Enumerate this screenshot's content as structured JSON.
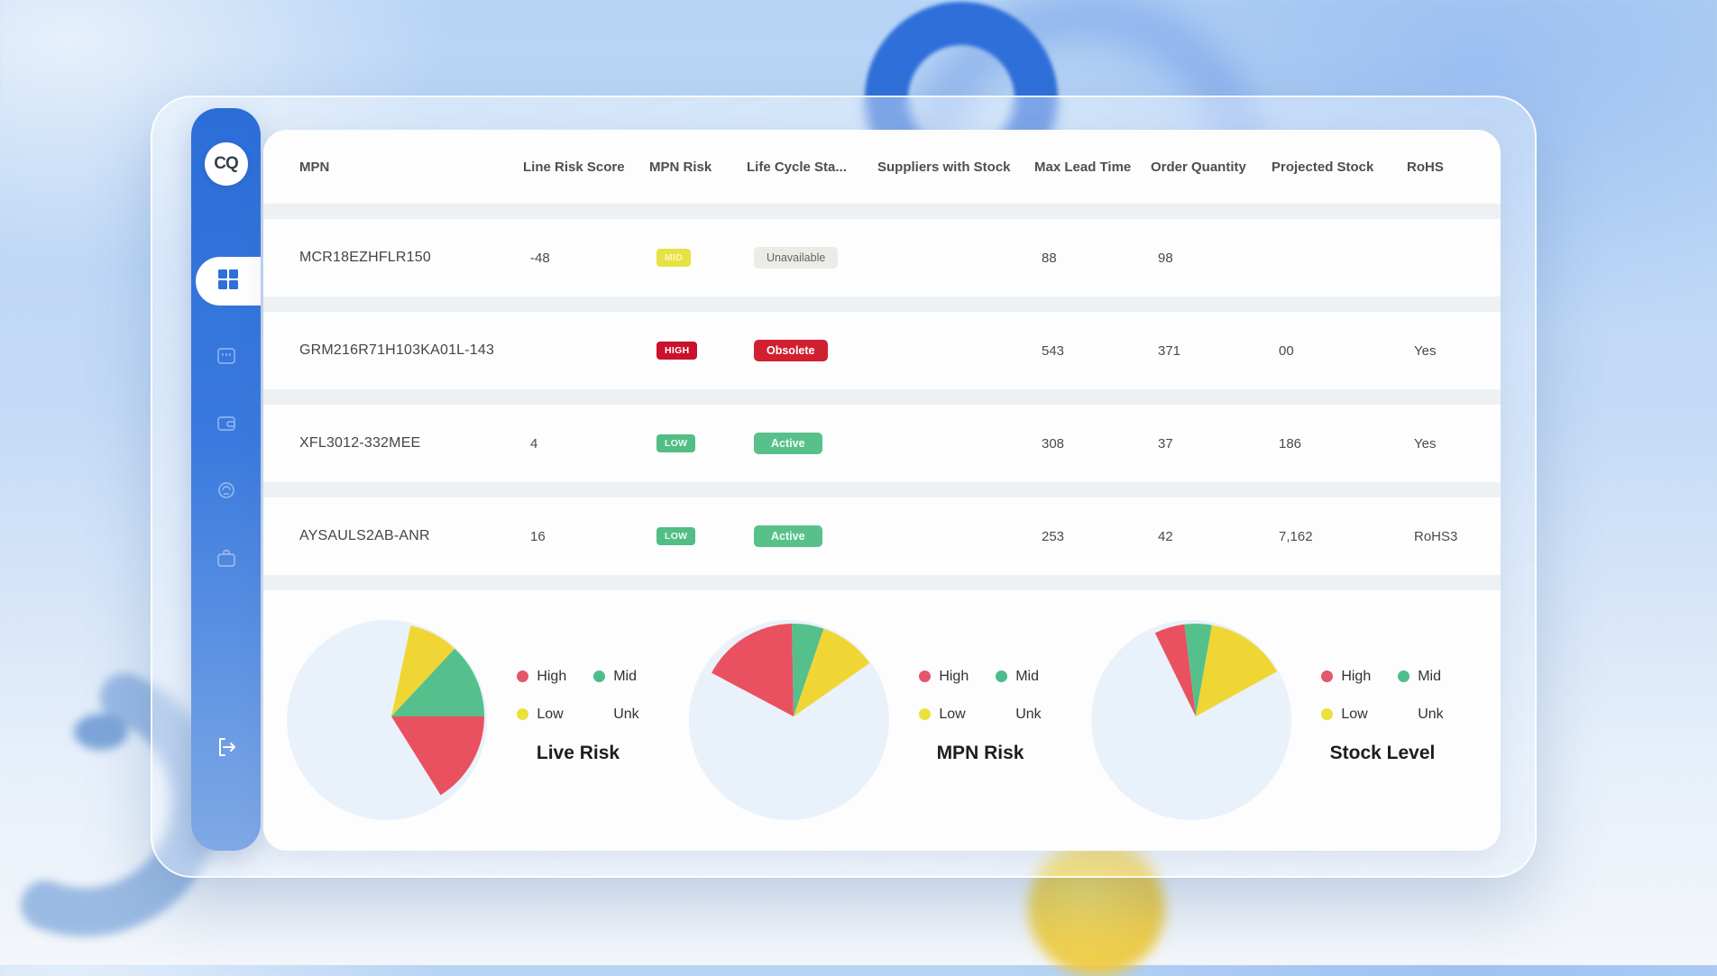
{
  "theme": {
    "sidebar_blue_top": "#2b6ed8",
    "sidebar_blue_bottom": "#7fa9e6",
    "accent_blue": "#2e6fd8",
    "panel_bg": "#fdfdfe",
    "stripe_bg": "#eef1f4",
    "badge_high_red": "#c9122b",
    "badge_danger_red": "#d02030",
    "badge_green": "#56c087",
    "badge_yellow": "#e7e243",
    "badge_neutral_gray": "#ebebe8",
    "legend": {
      "high": "#e4566b",
      "mid": "#4fbc8c",
      "low": "#e9e23d",
      "unk": "transparent"
    }
  },
  "sidebar": {
    "logo_text": "CQ"
  },
  "table": {
    "headers": [
      "MPN",
      "Line Risk Score",
      "MPN Risk",
      "Life Cycle Sta...",
      "Suppliers with Stock",
      "Max Lead Time",
      "Order Quantity",
      "Projected Stock",
      "RoHS"
    ],
    "rows": [
      {
        "mpn": "MCR18EZHFLR150",
        "line_risk_score": "-48",
        "mpn_risk": {
          "label": "MID",
          "type": "mid"
        },
        "life_cycle": {
          "label": "Unavailable",
          "type": "neutral"
        },
        "suppliers_with_stock": "",
        "max_lead_time": "88",
        "order_quantity": "98",
        "projected_stock": "",
        "rohs": ""
      },
      {
        "mpn": "GRM216R71H103KA01L-143",
        "line_risk_score": "",
        "mpn_risk": {
          "label": "HIGH",
          "type": "high"
        },
        "life_cycle": {
          "label": "Obsolete",
          "type": "danger"
        },
        "suppliers_with_stock": "",
        "max_lead_time": "543",
        "order_quantity": "371",
        "projected_stock": "00",
        "rohs": "Yes"
      },
      {
        "mpn": "XFL3012-332MEE",
        "line_risk_score": "4",
        "mpn_risk": {
          "label": "LOW",
          "type": "low"
        },
        "life_cycle": {
          "label": "Active",
          "type": "success"
        },
        "suppliers_with_stock": "",
        "max_lead_time": "308",
        "order_quantity": "37",
        "projected_stock": "186",
        "rohs": "Yes"
      },
      {
        "mpn": "AYSAULS2AB-ANR",
        "line_risk_score": "16",
        "mpn_risk": {
          "label": "LOW",
          "type": "low"
        },
        "life_cycle": {
          "label": "Active",
          "type": "success"
        },
        "suppliers_with_stock": "",
        "max_lead_time": "253",
        "order_quantity": "42",
        "projected_stock": "7,162",
        "rohs": "RoHS3"
      }
    ]
  },
  "legend": {
    "high": "High",
    "mid": "Mid",
    "low": "Low",
    "unk": "Unk"
  },
  "chart_data": [
    {
      "type": "pie",
      "title": "Live Risk",
      "legend_labels": [
        "High",
        "Mid",
        "Low",
        "Unk"
      ],
      "values_pct": {
        "High": 16,
        "Mid": 13,
        "Low": 9,
        "Unk": 62
      },
      "unk_fill": "#e9f2fa",
      "slices": [
        {
          "label": "Low",
          "start_deg": 78,
          "end_deg": 47,
          "color": "#f0d634"
        },
        {
          "label": "Mid",
          "start_deg": 47,
          "end_deg": 0,
          "color": "#55c08c"
        },
        {
          "label": "High",
          "start_deg": 0,
          "end_deg": -58,
          "color": "#ea5160"
        }
      ]
    },
    {
      "type": "pie",
      "title": "MPN Risk",
      "legend_labels": [
        "High",
        "Mid",
        "Low",
        "Unk"
      ],
      "values_pct": {
        "High": 17,
        "Mid": 6,
        "Low": 10,
        "Unk": 67
      },
      "unk_fill": "#e9f2fa",
      "slices": [
        {
          "label": "High",
          "start_deg": 152,
          "end_deg": 91,
          "color": "#ea5160"
        },
        {
          "label": "Mid",
          "start_deg": 91,
          "end_deg": 71,
          "color": "#55c08c"
        },
        {
          "label": "Low",
          "start_deg": 71,
          "end_deg": 35,
          "color": "#f0d634"
        }
      ]
    },
    {
      "type": "pie",
      "title": "Stock Level",
      "legend_labels": [
        "High",
        "Mid",
        "Low",
        "Unk"
      ],
      "values_pct": {
        "High": 5,
        "Mid": 5,
        "Low": 14,
        "Unk": 76
      },
      "unk_fill": "#e9f2fa",
      "slices": [
        {
          "label": "High",
          "start_deg": 116,
          "end_deg": 97,
          "color": "#ea5160"
        },
        {
          "label": "Mid",
          "start_deg": 97,
          "end_deg": 80,
          "color": "#55c08c"
        },
        {
          "label": "Low",
          "start_deg": 80,
          "end_deg": 29,
          "color": "#f0d634"
        }
      ]
    }
  ]
}
